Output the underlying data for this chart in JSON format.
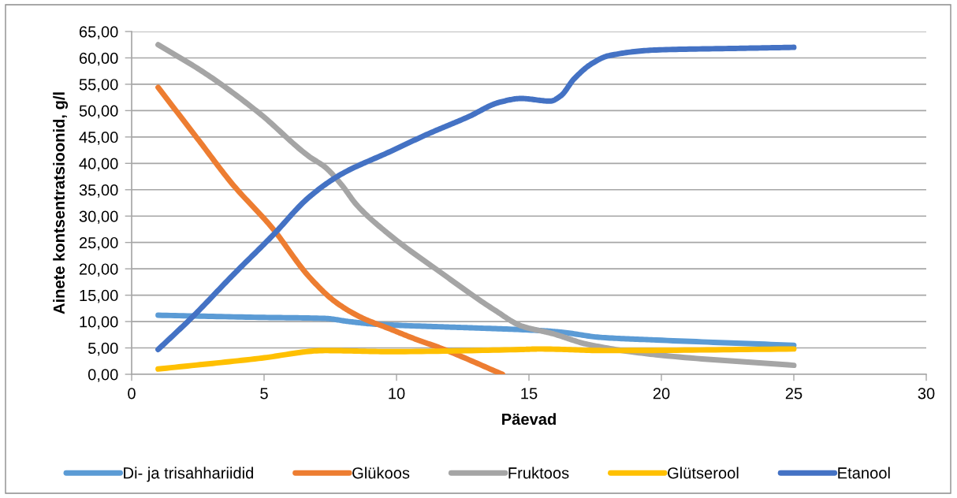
{
  "chart_data": {
    "type": "line",
    "xlabel": "Päevad",
    "ylabel": "Ainete kontsentratsioonid, g/l",
    "xlim": [
      0,
      30
    ],
    "xticks": [
      0,
      5,
      10,
      15,
      20,
      25,
      30
    ],
    "ylim": [
      0,
      65
    ],
    "yticks": [
      {
        "value": 0,
        "label": "0,00"
      },
      {
        "value": 5,
        "label": "5,00"
      },
      {
        "value": 10,
        "label": "10,00"
      },
      {
        "value": 15,
        "label": "15,00"
      },
      {
        "value": 20,
        "label": "20,00"
      },
      {
        "value": 25,
        "label": "25,00"
      },
      {
        "value": 30,
        "label": "30,00"
      },
      {
        "value": 35,
        "label": "35,00"
      },
      {
        "value": 40,
        "label": "40,00"
      },
      {
        "value": 45,
        "label": "45,00"
      },
      {
        "value": 50,
        "label": "50,00"
      },
      {
        "value": 55,
        "label": "55,00"
      },
      {
        "value": 60,
        "label": "60,00"
      },
      {
        "value": 65,
        "label": "65,00"
      }
    ],
    "grid": "y",
    "legend": "bottom",
    "line_style": "solid",
    "series": [
      {
        "name": "Di- ja trisahhariidid",
        "color": "#5b9bd5",
        "x": [
          1,
          4.8,
          7.3,
          8.2,
          9.2,
          11.7,
          12.9,
          15.4,
          16.2,
          17.7,
          19.8,
          25
        ],
        "values": [
          11.2,
          10.8,
          10.6,
          10.0,
          9.5,
          9.0,
          8.8,
          8.3,
          8.0,
          7.0,
          6.5,
          5.5
        ]
      },
      {
        "name": "Glükoos",
        "color": "#ed7d31",
        "x": [
          1,
          2.5,
          3.8,
          5.3,
          6.7,
          7.7,
          8.7,
          9.7,
          10.7,
          11.7,
          14
        ],
        "values": [
          54.4,
          44.6,
          36.1,
          27.8,
          18.5,
          13.7,
          10.7,
          8.7,
          6.7,
          4.9,
          0
        ]
      },
      {
        "name": "Fruktoos",
        "color": "#a5a5a5",
        "x": [
          1,
          2.8,
          4.8,
          6.7,
          7.3,
          7.9,
          8.5,
          9.7,
          11.7,
          13.7,
          14.7,
          15.9,
          17.2,
          19.8,
          25
        ],
        "values": [
          62.5,
          57.0,
          49.6,
          41.3,
          39.3,
          36.1,
          32.1,
          26.6,
          19.2,
          12.2,
          9.2,
          7.7,
          5.7,
          3.7,
          1.7
        ]
      },
      {
        "name": "Glütserool",
        "color": "#ffc000",
        "x": [
          1,
          4.8,
          7.3,
          9.7,
          14.7,
          15.4,
          17.9,
          25
        ],
        "values": [
          1.0,
          3.0,
          4.5,
          4.3,
          4.7,
          4.8,
          4.5,
          4.8
        ]
      },
      {
        "name": "Etanool",
        "color": "#4472c4",
        "x": [
          1,
          2.3,
          3.8,
          5.3,
          6.7,
          7.9,
          9.7,
          11.2,
          12.7,
          13.9,
          14.7,
          15.8,
          16.2,
          16.7,
          17.4,
          18.0,
          19.8,
          22.8,
          25
        ],
        "values": [
          4.7,
          10.9,
          18.7,
          26.2,
          33.6,
          37.9,
          42.1,
          45.6,
          48.8,
          51.6,
          52.3,
          51.8,
          52.8,
          56.0,
          59.0,
          60.4,
          61.5,
          61.8,
          62.0
        ]
      }
    ]
  }
}
